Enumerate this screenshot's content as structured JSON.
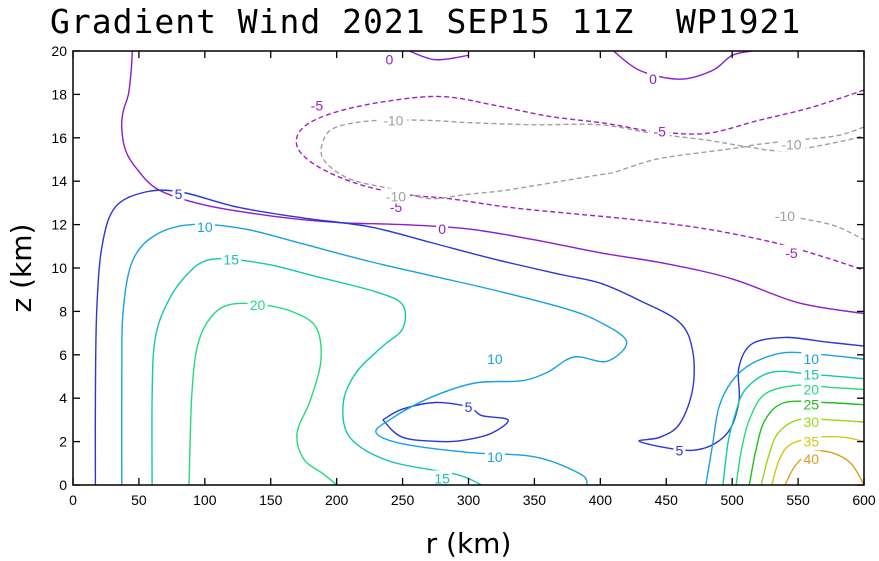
{
  "chart_data": {
    "type": "contour",
    "title": "Gradient Wind 2021 SEP15 11Z  WP1921",
    "xlabel": "r (km)",
    "ylabel": "z (km)",
    "xlim": [
      0,
      600
    ],
    "ylim": [
      0,
      20
    ],
    "xticks": [
      "0",
      "50",
      "100",
      "150",
      "200",
      "250",
      "300",
      "350",
      "400",
      "450",
      "500",
      "550",
      "600"
    ],
    "yticks": [
      "0",
      "2",
      "4",
      "6",
      "8",
      "10",
      "12",
      "14",
      "16",
      "18",
      "20"
    ],
    "colors": {
      "-10": "#a0a0a0",
      "-5": "#a020c8",
      "0": "#8c1cd0",
      "5": "#2838d8",
      "10": "#18a0e8",
      "15": "#10c8b0",
      "20": "#28d880",
      "25": "#20c020",
      "30": "#98d818",
      "35": "#d0c810",
      "40": "#d8a020"
    },
    "contours": [
      {
        "level": 0,
        "dashed": false,
        "points": [
          [
            45,
            20
          ],
          [
            44,
            19
          ],
          [
            42,
            18
          ],
          [
            38,
            17.2
          ],
          [
            37,
            16.4
          ],
          [
            40,
            15.4
          ],
          [
            48,
            14.6
          ],
          [
            65,
            13.6
          ],
          [
            100,
            12.9
          ],
          [
            150,
            12.4
          ],
          [
            200,
            12.1
          ],
          [
            250,
            12.0
          ],
          [
            300,
            11.8
          ],
          [
            350,
            11.3
          ],
          [
            400,
            10.7
          ],
          [
            450,
            10.2
          ],
          [
            500,
            9.5
          ],
          [
            550,
            8.4
          ],
          [
            600,
            7.9
          ]
        ]
      },
      {
        "level": 0,
        "dashed": false,
        "points": [
          [
            255,
            20
          ],
          [
            275,
            19.6
          ],
          [
            300,
            19.8
          ]
        ]
      },
      {
        "level": 0,
        "dashed": false,
        "points": [
          [
            410,
            20
          ],
          [
            430,
            19.1
          ],
          [
            460,
            18.7
          ],
          [
            485,
            19.1
          ],
          [
            500,
            19.8
          ],
          [
            515,
            20
          ]
        ]
      },
      {
        "level": -5,
        "dashed": true,
        "points": [
          [
            600,
            18.2
          ],
          [
            560,
            17.4
          ],
          [
            520,
            16.8
          ],
          [
            480,
            16.2
          ],
          [
            440,
            16.3
          ],
          [
            420,
            16.5
          ],
          [
            400,
            16.7
          ],
          [
            360,
            17.0
          ],
          [
            320,
            17.5
          ],
          [
            280,
            17.9
          ],
          [
            240,
            17.7
          ],
          [
            200,
            17.2
          ],
          [
            175,
            16.5
          ],
          [
            170,
            15.6
          ],
          [
            185,
            14.7
          ],
          [
            215,
            13.9
          ],
          [
            250,
            13.4
          ],
          [
            285,
            13.2
          ],
          [
            330,
            12.8
          ],
          [
            380,
            12.5
          ],
          [
            430,
            12.2
          ],
          [
            480,
            11.8
          ],
          [
            530,
            11.2
          ],
          [
            570,
            10.5
          ],
          [
            600,
            9.9
          ]
        ]
      },
      {
        "level": -10,
        "dashed": true,
        "points": [
          [
            600,
            16.5
          ],
          [
            580,
            16.1
          ],
          [
            550,
            15.9
          ],
          [
            520,
            15.7
          ],
          [
            500,
            15.5
          ],
          [
            450,
            15.1
          ],
          [
            430,
            14.8
          ],
          [
            410,
            14.4
          ],
          [
            400,
            14.3
          ],
          [
            380,
            14.1
          ],
          [
            330,
            13.6
          ],
          [
            300,
            13.4
          ],
          [
            270,
            13.2
          ],
          [
            245,
            13.6
          ],
          [
            210,
            14.1
          ],
          [
            190,
            15.0
          ],
          [
            190,
            15.9
          ],
          [
            200,
            16.5
          ],
          [
            230,
            16.8
          ],
          [
            270,
            16.8
          ],
          [
            300,
            16.7
          ],
          [
            350,
            16.6
          ],
          [
            400,
            16.6
          ],
          [
            440,
            16.2
          ],
          [
            480,
            15.9
          ],
          [
            510,
            15.6
          ],
          [
            540,
            15.4
          ],
          [
            580,
            15.8
          ],
          [
            600,
            16.1
          ]
        ]
      },
      {
        "level": -10,
        "dashed": true,
        "points": [
          [
            540,
            12.4
          ],
          [
            560,
            12.2
          ],
          [
            580,
            11.9
          ],
          [
            600,
            11.3
          ]
        ]
      },
      {
        "level": 5,
        "dashed": false,
        "points": [
          [
            17,
            0
          ],
          [
            17,
            4
          ],
          [
            18,
            8
          ],
          [
            22,
            11
          ],
          [
            32,
            12.8
          ],
          [
            55,
            13.5
          ],
          [
            82,
            13.5
          ],
          [
            125,
            12.8
          ],
          [
            175,
            12.3
          ],
          [
            225,
            11.9
          ],
          [
            270,
            11.2
          ],
          [
            320,
            10.4
          ],
          [
            370,
            9.7
          ],
          [
            400,
            9.3
          ],
          [
            430,
            8.5
          ],
          [
            460,
            7.5
          ],
          [
            470,
            6.2
          ],
          [
            470,
            4.4
          ],
          [
            460,
            2.8
          ],
          [
            445,
            2.2
          ],
          [
            430,
            2.0
          ],
          [
            470,
            1.6
          ],
          [
            495,
            2.3
          ],
          [
            505,
            3.8
          ],
          [
            505,
            5.4
          ],
          [
            515,
            6.5
          ],
          [
            540,
            6.8
          ],
          [
            570,
            6.6
          ],
          [
            600,
            6.4
          ]
        ]
      },
      {
        "level": 5,
        "dashed": false,
        "points": [
          [
            235,
            3.0
          ],
          [
            250,
            3.5
          ],
          [
            275,
            3.8
          ],
          [
            300,
            3.6
          ],
          [
            310,
            3.2
          ],
          [
            330,
            3.0
          ],
          [
            318,
            2.4
          ],
          [
            300,
            2.1
          ],
          [
            280,
            2.0
          ],
          [
            250,
            2.2
          ],
          [
            235,
            3.0
          ]
        ]
      },
      {
        "level": 10,
        "dashed": false,
        "points": [
          [
            37,
            0
          ],
          [
            37,
            5
          ],
          [
            38,
            8
          ],
          [
            45,
            10.3
          ],
          [
            62,
            11.5
          ],
          [
            90,
            12.0
          ],
          [
            130,
            11.8
          ],
          [
            175,
            11.1
          ],
          [
            225,
            10.3
          ],
          [
            275,
            9.6
          ],
          [
            325,
            8.9
          ],
          [
            375,
            8.1
          ],
          [
            400,
            7.5
          ],
          [
            420,
            6.6
          ],
          [
            405,
            5.7
          ],
          [
            380,
            5.9
          ],
          [
            360,
            5.2
          ],
          [
            340,
            4.8
          ],
          [
            305,
            4.7
          ],
          [
            270,
            4.0
          ],
          [
            240,
            3.0
          ],
          [
            230,
            2.4
          ],
          [
            250,
            1.9
          ],
          [
            300,
            1.5
          ],
          [
            350,
            1.3
          ],
          [
            385,
            0.5
          ],
          [
            390,
            0
          ]
        ]
      },
      {
        "level": 10,
        "dashed": false,
        "points": [
          [
            480,
            0
          ],
          [
            485,
            1.8
          ],
          [
            490,
            3.6
          ],
          [
            500,
            4.8
          ],
          [
            515,
            5.6
          ],
          [
            540,
            6.1
          ],
          [
            570,
            6.0
          ],
          [
            600,
            5.8
          ]
        ]
      },
      {
        "level": 15,
        "dashed": false,
        "points": [
          [
            60,
            0
          ],
          [
            60,
            4
          ],
          [
            62,
            6.6
          ],
          [
            70,
            8.2
          ],
          [
            85,
            9.6
          ],
          [
            105,
            10.4
          ],
          [
            145,
            10.2
          ],
          [
            185,
            9.6
          ],
          [
            230,
            8.9
          ],
          [
            250,
            8.3
          ],
          [
            250,
            7.2
          ],
          [
            235,
            6.4
          ],
          [
            215,
            5.2
          ],
          [
            205,
            3.8
          ],
          [
            210,
            2.2
          ],
          [
            240,
            1.1
          ],
          [
            290,
            0.5
          ],
          [
            310,
            0
          ]
        ]
      },
      {
        "level": 15,
        "dashed": false,
        "points": [
          [
            493,
            0
          ],
          [
            497,
            2.0
          ],
          [
            502,
            3.2
          ],
          [
            510,
            4.4
          ],
          [
            530,
            5.2
          ],
          [
            560,
            5.1
          ],
          [
            600,
            4.9
          ]
        ]
      },
      {
        "level": 20,
        "dashed": false,
        "points": [
          [
            88,
            0
          ],
          [
            90,
            4
          ],
          [
            94,
            6.3
          ],
          [
            103,
            7.6
          ],
          [
            118,
            8.3
          ],
          [
            145,
            8.3
          ],
          [
            170,
            7.9
          ],
          [
            185,
            7.2
          ],
          [
            188,
            5.7
          ],
          [
            180,
            3.9
          ],
          [
            170,
            2.4
          ],
          [
            175,
            1.2
          ],
          [
            190,
            0.5
          ],
          [
            200,
            0
          ]
        ]
      },
      {
        "level": 20,
        "dashed": false,
        "points": [
          [
            503,
            0
          ],
          [
            507,
            1.6
          ],
          [
            513,
            3.0
          ],
          [
            525,
            4.2
          ],
          [
            550,
            4.6
          ],
          [
            575,
            4.5
          ],
          [
            600,
            4.4
          ]
        ]
      },
      {
        "level": 25,
        "dashed": false,
        "points": [
          [
            513,
            0
          ],
          [
            518,
            1.6
          ],
          [
            525,
            3.0
          ],
          [
            540,
            3.8
          ],
          [
            570,
            3.8
          ],
          [
            600,
            3.7
          ]
        ]
      },
      {
        "level": 30,
        "dashed": false,
        "points": [
          [
            522,
            0
          ],
          [
            528,
            1.4
          ],
          [
            535,
            2.4
          ],
          [
            550,
            3.0
          ],
          [
            575,
            3.0
          ],
          [
            600,
            2.9
          ]
        ]
      },
      {
        "level": 35,
        "dashed": false,
        "points": [
          [
            530,
            0
          ],
          [
            536,
            1.2
          ],
          [
            545,
            1.9
          ],
          [
            565,
            2.2
          ],
          [
            585,
            2.2
          ],
          [
            600,
            2.0
          ]
        ]
      },
      {
        "level": 40,
        "dashed": false,
        "points": [
          [
            540,
            0
          ],
          [
            548,
            0.9
          ],
          [
            560,
            1.5
          ],
          [
            575,
            1.5
          ],
          [
            590,
            1.0
          ],
          [
            600,
            0
          ]
        ]
      }
    ],
    "labels": [
      {
        "text": "0",
        "x": 240,
        "y": 19.6,
        "level": 0
      },
      {
        "text": "0",
        "x": 440,
        "y": 18.7,
        "level": 0
      },
      {
        "text": "0",
        "x": 280,
        "y": 11.8,
        "level": 0
      },
      {
        "text": "-5",
        "x": 185,
        "y": 17.5,
        "level": -5
      },
      {
        "text": "-5",
        "x": 445,
        "y": 16.3,
        "level": -5
      },
      {
        "text": "-5",
        "x": 245,
        "y": 12.8,
        "level": -5
      },
      {
        "text": "-5",
        "x": 545,
        "y": 10.7,
        "level": -5
      },
      {
        "text": "-10",
        "x": 243,
        "y": 16.8,
        "level": -10
      },
      {
        "text": "-10",
        "x": 545,
        "y": 15.7,
        "level": -10
      },
      {
        "text": "-10",
        "x": 245,
        "y": 13.3,
        "level": -10
      },
      {
        "text": "-10",
        "x": 540,
        "y": 12.4,
        "level": -10
      },
      {
        "text": "5",
        "x": 80,
        "y": 13.4,
        "level": 5
      },
      {
        "text": "5",
        "x": 300,
        "y": 3.6,
        "level": 5
      },
      {
        "text": "5",
        "x": 460,
        "y": 1.6,
        "level": 5
      },
      {
        "text": "10",
        "x": 100,
        "y": 11.9,
        "level": 10
      },
      {
        "text": "10",
        "x": 320,
        "y": 5.8,
        "level": 10
      },
      {
        "text": "10",
        "x": 320,
        "y": 1.3,
        "level": 10
      },
      {
        "text": "10",
        "x": 560,
        "y": 5.8,
        "level": 10
      },
      {
        "text": "15",
        "x": 120,
        "y": 10.4,
        "level": 15
      },
      {
        "text": "15",
        "x": 280,
        "y": 0.3,
        "level": 15
      },
      {
        "text": "15",
        "x": 560,
        "y": 5.1,
        "level": 15
      },
      {
        "text": "20",
        "x": 140,
        "y": 8.3,
        "level": 20
      },
      {
        "text": "20",
        "x": 560,
        "y": 4.4,
        "level": 20
      },
      {
        "text": "25",
        "x": 560,
        "y": 3.7,
        "level": 25
      },
      {
        "text": "30",
        "x": 560,
        "y": 2.9,
        "level": 30
      },
      {
        "text": "35",
        "x": 560,
        "y": 2.0,
        "level": 35
      },
      {
        "text": "40",
        "x": 560,
        "y": 1.2,
        "level": 40
      }
    ]
  }
}
